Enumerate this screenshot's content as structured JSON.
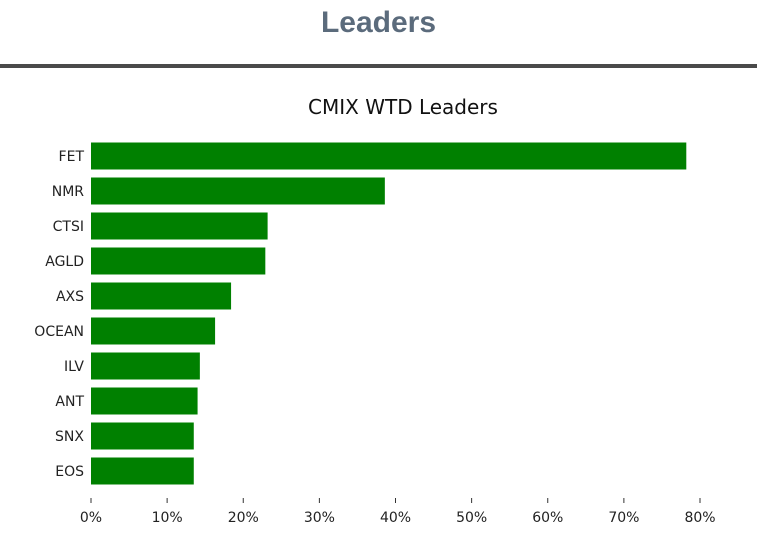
{
  "header": {
    "title": "Leaders"
  },
  "colors": {
    "bar": "#008000",
    "header_text": "#5b6b7c",
    "divider": "#4a4a4a"
  },
  "chart_data": {
    "type": "bar",
    "orientation": "horizontal",
    "title": "CMIX WTD Leaders",
    "xlabel": "",
    "ylabel": "",
    "categories": [
      "FET",
      "NMR",
      "CTSI",
      "AGLD",
      "AXS",
      "OCEAN",
      "ILV",
      "ANT",
      "SNX",
      "EOS"
    ],
    "values": [
      78.2,
      38.6,
      23.2,
      22.9,
      18.4,
      16.3,
      14.3,
      14.0,
      13.5,
      13.5
    ],
    "xlim": [
      0,
      80
    ],
    "x_ticks": [
      "0%",
      "10%",
      "20%",
      "30%",
      "40%",
      "50%",
      "60%",
      "70%",
      "80%"
    ],
    "grid": false,
    "legend": "none"
  }
}
